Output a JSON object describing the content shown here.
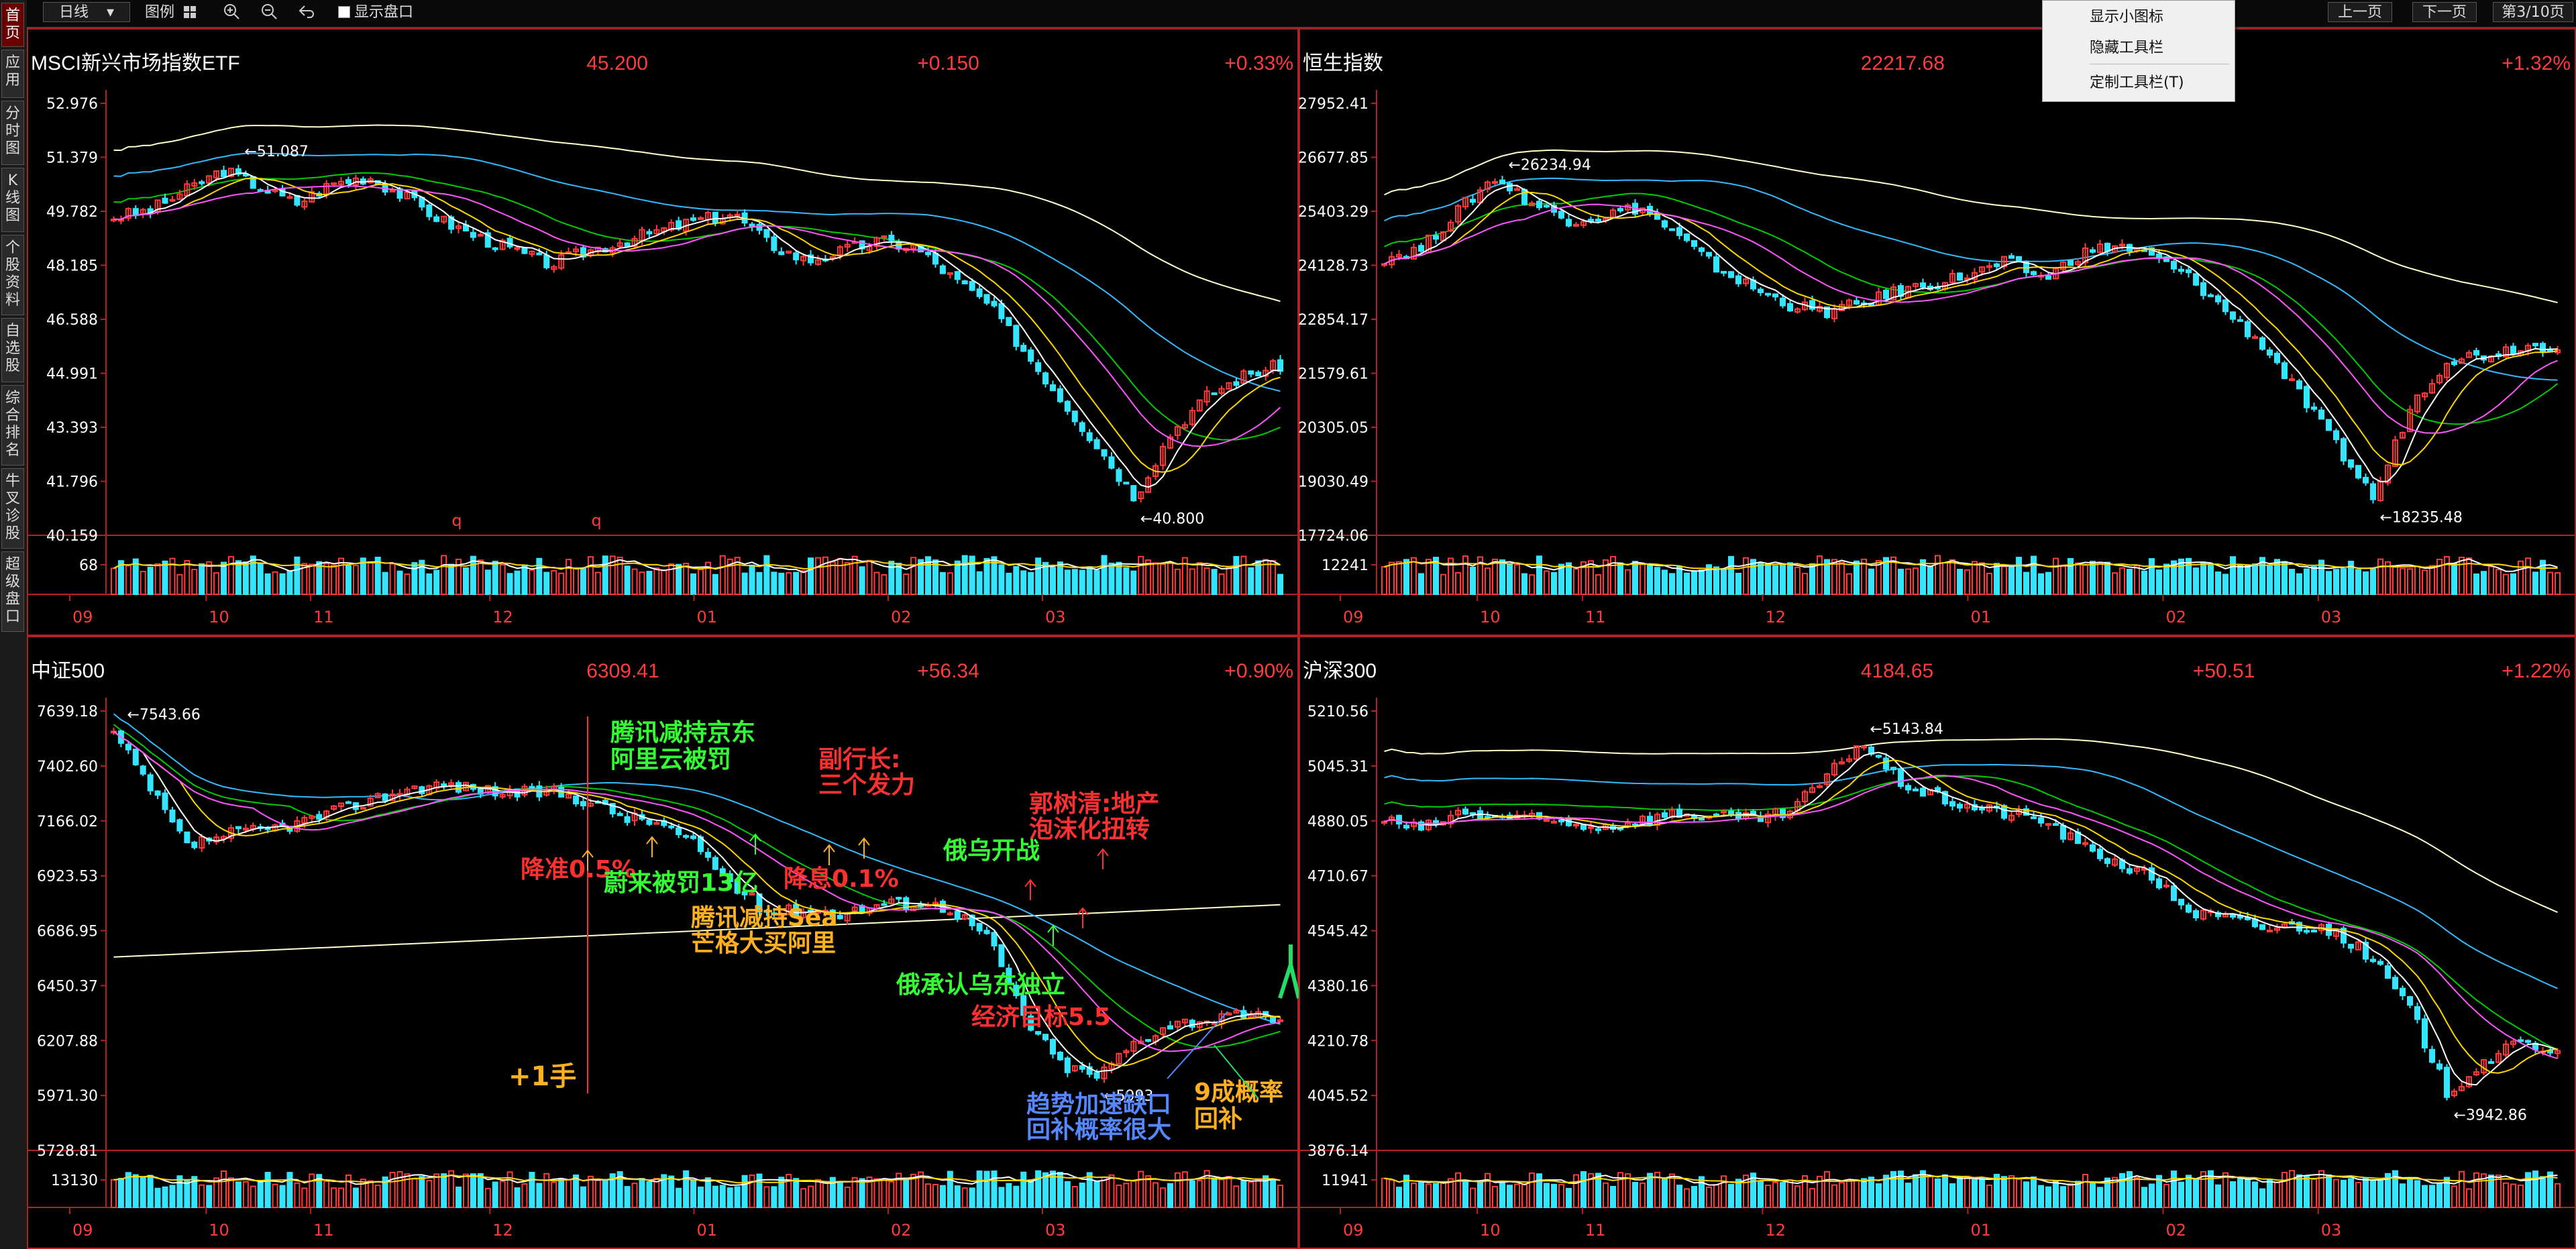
{
  "toolbar": {
    "period": "日线",
    "period_caret": "▾",
    "legend": "图例",
    "show_disk": "显示盘口",
    "prev_page": "上一页",
    "next_page": "下一页",
    "page_indicator": "第3/10页"
  },
  "context_menu": {
    "items": [
      "显示小图标",
      "隐藏工具栏",
      "定制工具栏(T)"
    ]
  },
  "sidebar": {
    "tabs": [
      "首页",
      "应用",
      "分时图",
      "K线图",
      "个股资料",
      "自选股",
      "综合排名",
      "牛叉诊股",
      "超级盘口"
    ],
    "active": "首页"
  },
  "colors": {
    "up": "#ff3b3b",
    "down": "#33e5ff",
    "ma5": "#ffffff",
    "ma10": "#ffd700",
    "ma20": "#ff55ff",
    "ma60": "#00cc00",
    "ma120": "#33bbff",
    "ma250": "#ffffcc",
    "axis": "#b22222",
    "green_note": "#33ff33",
    "red_note": "#ff3030",
    "orange_note": "#ffb020",
    "blue_note": "#5588ff"
  },
  "months": [
    "09",
    "10",
    "11",
    "12",
    "01",
    "02",
    "03"
  ],
  "chart_data": [
    {
      "type": "candlestick",
      "name": "MSCI新兴市场指数ETF",
      "price": "45.200",
      "change": "+0.150",
      "pct": "+0.33%",
      "ylim": [
        40.159,
        52.976
      ],
      "y_ticks": [
        "52.976",
        "51.379",
        "49.782",
        "48.185",
        "46.588",
        "44.991",
        "43.393",
        "41.796",
        "40.159"
      ],
      "high_label": "51.087",
      "low_label": "40.800",
      "volume_label": "68",
      "close_path": [
        49.6,
        49.8,
        50.4,
        51.0,
        50.5,
        50.0,
        50.6,
        50.8,
        50.2,
        49.5,
        49.0,
        48.6,
        48.2,
        48.6,
        48.9,
        49.2,
        49.5,
        49.7,
        48.8,
        48.3,
        48.6,
        48.9,
        48.7,
        47.8,
        47.0,
        45.6,
        44.2,
        42.8,
        41.3,
        43.2,
        44.3,
        44.9,
        45.2
      ],
      "extra_marks": [
        "q",
        "q"
      ]
    },
    {
      "type": "candlestick",
      "name": "恒生指数",
      "price": "22217.68",
      "change": "",
      "pct": "+1.32%",
      "ylim": [
        17724.06,
        27952.41
      ],
      "y_ticks": [
        "27952.41",
        "26677.85",
        "25403.29",
        "24128.73",
        "22854.17",
        "21579.61",
        "20305.05",
        "19030.49",
        "17724.06"
      ],
      "high_label": "26234.94",
      "low_label": "18235.48",
      "volume_label": "12241",
      "close_path": [
        24300,
        24500,
        25400,
        26200,
        25600,
        25200,
        25300,
        25500,
        24800,
        24100,
        23600,
        23200,
        23000,
        23200,
        23500,
        23700,
        23900,
        24200,
        23800,
        24400,
        24600,
        24300,
        23800,
        23000,
        22200,
        21000,
        19800,
        18600,
        20800,
        21900,
        22000,
        22200,
        22217
      ]
    },
    {
      "type": "candlestick",
      "name": "中证500",
      "price": "6309.41",
      "change": "+56.34",
      "pct": "+0.90%",
      "ylim": [
        5728.81,
        7639.18
      ],
      "y_ticks": [
        "7639.18",
        "7402.60",
        "7166.02",
        "6923.53",
        "6686.95",
        "6450.37",
        "6207.88",
        "5971.30",
        "5728.81"
      ],
      "high_label": "7543.66",
      "low_label": "5993",
      "volume_label": "13130",
      "close_path": [
        7540,
        7300,
        7050,
        7100,
        7120,
        7150,
        7200,
        7250,
        7300,
        7320,
        7300,
        7280,
        7290,
        7250,
        7180,
        7150,
        7050,
        6880,
        6760,
        6780,
        6760,
        6800,
        6810,
        6780,
        6650,
        6300,
        6100,
        6050,
        6200,
        6280,
        6300,
        6310,
        6309
      ]
    },
    {
      "type": "candlestick",
      "name": "沪深300",
      "price": "4184.65",
      "change": "+50.51",
      "pct": "+1.22%",
      "ylim": [
        3876.14,
        5210.56
      ],
      "y_ticks": [
        "5210.56",
        "5045.31",
        "4880.05",
        "4710.67",
        "4545.42",
        "4380.16",
        "4210.78",
        "4045.52",
        "3876.14"
      ],
      "high_label": "5143.84",
      "low_label": "3942.86",
      "volume_label": "11941",
      "close_path": [
        4880,
        4850,
        4900,
        4890,
        4880,
        4870,
        4860,
        4880,
        4900,
        4890,
        4880,
        4900,
        5000,
        5120,
        5000,
        4950,
        4920,
        4900,
        4880,
        4800,
        4750,
        4700,
        4600,
        4580,
        4550,
        4560,
        4540,
        4450,
        4300,
        4050,
        4150,
        4200,
        4184
      ]
    }
  ],
  "annotations": {
    "a1": "腾讯减持京东",
    "a2": "阿里云被罚",
    "a3": "副行长:",
    "a4": "三个发力",
    "a5": "降准0.5%",
    "a6": "蔚来被罚13亿",
    "a7": "降息0.1%",
    "a8": "腾讯减持Sea",
    "a9": "芒格大买阿里",
    "a10": "俄乌开战",
    "a11": "郭树清:地产",
    "a12": "泡沫化扭转",
    "a13": "俄承认乌东独立",
    "a14": "经济目标5.5",
    "a15": "+1手",
    "a16": "趋势加速缺口",
    "a17": "回补概率很大",
    "a18": "9成概率",
    "a19": "回补"
  }
}
